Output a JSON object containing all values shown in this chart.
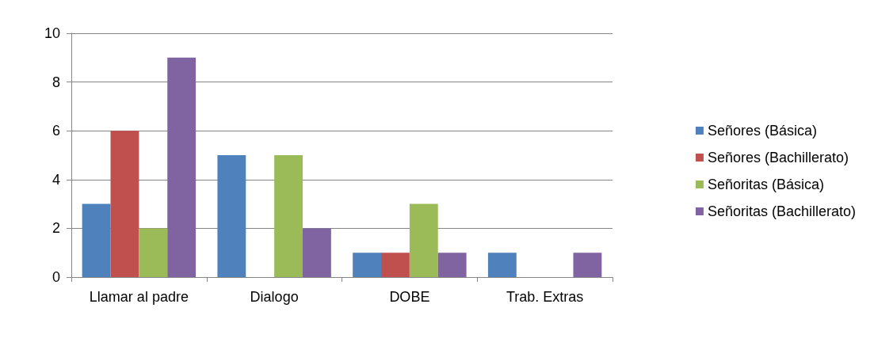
{
  "chart_data": {
    "type": "bar",
    "categories": [
      "Llamar al padre",
      "Dialogo",
      "DOBE",
      "Trab. Extras"
    ],
    "series": [
      {
        "name": "Señores (Básica)",
        "color": "#4f81bd",
        "values": [
          3,
          5,
          1,
          1
        ]
      },
      {
        "name": "Señores (Bachillerato)",
        "color": "#c0504d",
        "values": [
          6,
          0,
          1,
          0
        ]
      },
      {
        "name": "Señoritas (Básica)",
        "color": "#9bbb59",
        "values": [
          2,
          5,
          3,
          0
        ]
      },
      {
        "name": "Señoritas (Bachillerato)",
        "color": "#8064a2",
        "values": [
          9,
          2,
          1,
          1
        ]
      }
    ],
    "ylim": [
      0,
      10
    ],
    "yticks": [
      0,
      2,
      4,
      6,
      8,
      10
    ],
    "grid": "y",
    "legend": "right"
  }
}
